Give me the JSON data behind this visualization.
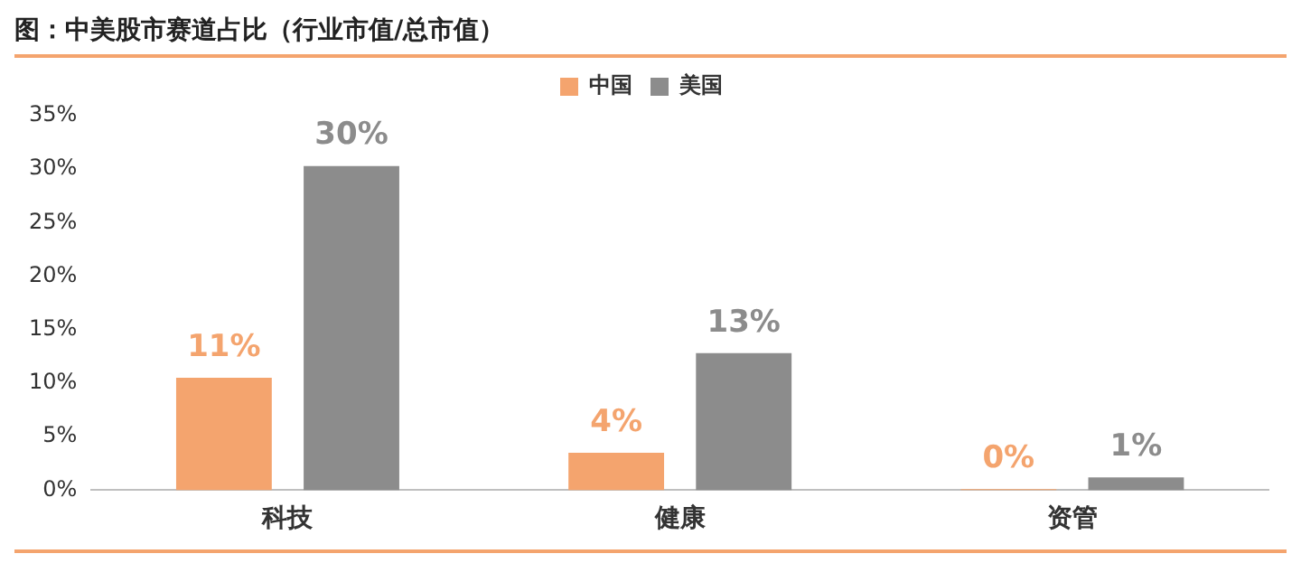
{
  "chart_data": {
    "type": "bar",
    "title": "图：中美股市赛道占比（行业市值/总市值）",
    "categories": [
      "科技",
      "健康",
      "资管"
    ],
    "series": [
      {
        "name": "中国",
        "color": "#f4a46e",
        "values": [
          10.5,
          3.5,
          0.1
        ],
        "value_labels": [
          "11%",
          "4%",
          "0%"
        ]
      },
      {
        "name": "美国",
        "color": "#8c8c8c",
        "values": [
          30.3,
          12.8,
          1.2
        ],
        "value_labels": [
          "30%",
          "13%",
          "1%"
        ]
      }
    ],
    "ylim": [
      0,
      35
    ],
    "yticks": [
      {
        "value": 0,
        "label": "0%"
      },
      {
        "value": 5,
        "label": "5%"
      },
      {
        "value": 10,
        "label": "10%"
      },
      {
        "value": 15,
        "label": "15%"
      },
      {
        "value": 20,
        "label": "20%"
      },
      {
        "value": 25,
        "label": "25%"
      },
      {
        "value": 30,
        "label": "30%"
      },
      {
        "value": 35,
        "label": "35%"
      }
    ],
    "grid": false,
    "legend": "top"
  }
}
